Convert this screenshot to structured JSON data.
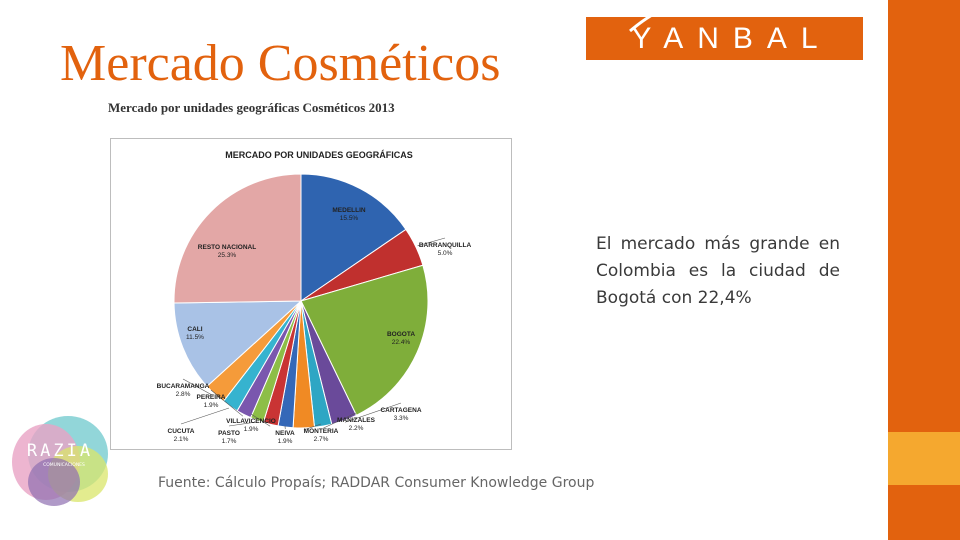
{
  "slide": {
    "title": "Mercado Cosméticos",
    "logo_text": "YANBAL",
    "chart_caption": "Mercado por unidades geográficas Cosméticos 2013",
    "body_text": "El mercado más grande en Colombia es la ciudad de Bogotá con 22,4%",
    "source": "Fuente: Cálculo Propaís; RADDAR Consumer Knowledge Group",
    "partner_logo": "RAZIA",
    "partner_logo_sub": "COMUNICACIONES"
  },
  "colors": {
    "accent": "#E2620E",
    "accent_light": "#F5A82F"
  },
  "chart_data": {
    "type": "pie",
    "title": "MERCADO POR UNIDADES GEOGRÁFICAS",
    "slices": [
      {
        "label": "MEDELLIN",
        "value": 15.5,
        "value_label": "15.5%",
        "color": "#2F64B0"
      },
      {
        "label": "BARRANQUILLA",
        "value": 5.0,
        "value_label": "5.0%",
        "color": "#C0302E"
      },
      {
        "label": "BOGOTA",
        "value": 22.4,
        "value_label": "22.4%",
        "color": "#7FAE3A"
      },
      {
        "label": "CARTAGENA",
        "value": 3.3,
        "value_label": "3.3%",
        "color": "#6A4A9A"
      },
      {
        "label": "MANIZALES",
        "value": 2.2,
        "value_label": "2.2%",
        "color": "#2EA6C4"
      },
      {
        "label": "MONTERIA",
        "value": 2.7,
        "value_label": "2.7%",
        "color": "#F08A24"
      },
      {
        "label": "NEIVA",
        "value": 1.9,
        "value_label": "1.9%",
        "color": "#3468B8"
      },
      {
        "label": "VILLAVICENCIO",
        "value": 1.9,
        "value_label": "1.9%",
        "color": "#C93434"
      },
      {
        "label": "PASTO",
        "value": 1.7,
        "value_label": "1.7%",
        "color": "#8DBE47"
      },
      {
        "label": "PEREIRA",
        "value": 1.9,
        "value_label": "1.9%",
        "color": "#7A57AE"
      },
      {
        "label": "CUCUTA",
        "value": 2.1,
        "value_label": "2.1%",
        "color": "#36B3CF"
      },
      {
        "label": "BUCARAMANGA",
        "value": 2.8,
        "value_label": "2.8%",
        "color": "#F59B3A"
      },
      {
        "label": "CALI",
        "value": 11.5,
        "value_label": "11.5%",
        "color": "#A9C2E6"
      },
      {
        "label": "RESTO NACIONAL",
        "value": 25.3,
        "value_label": "25.3%",
        "color": "#E3A7A6"
      }
    ]
  }
}
